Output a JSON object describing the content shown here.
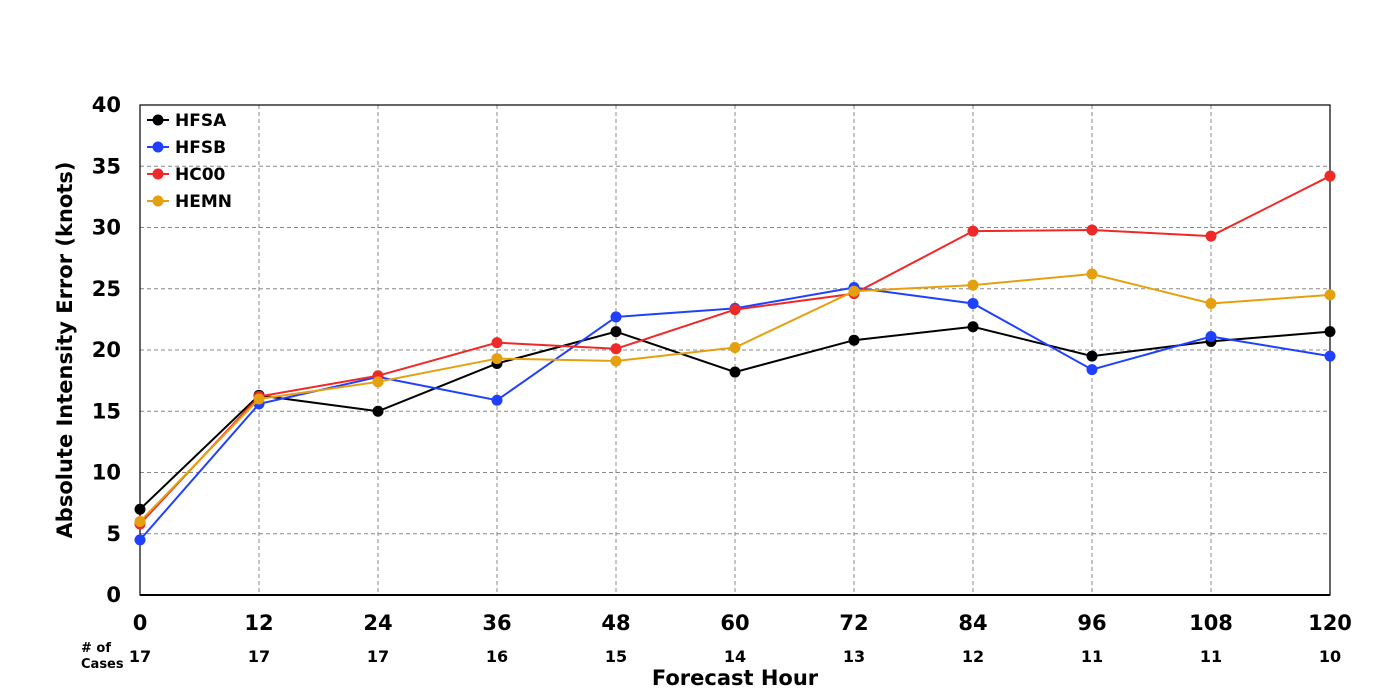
{
  "chart_data": {
    "type": "line",
    "xlabel": "Forecast Hour",
    "ylabel": "Absolute Intensity Error (knots)",
    "x": [
      0,
      12,
      24,
      36,
      48,
      60,
      72,
      84,
      96,
      108,
      120
    ],
    "xticks": [
      "0",
      "12",
      "24",
      "36",
      "48",
      "60",
      "72",
      "84",
      "96",
      "108",
      "120"
    ],
    "ylim": [
      0,
      40
    ],
    "yticks": [
      "0",
      "5",
      "10",
      "15",
      "20",
      "25",
      "30",
      "35",
      "40"
    ],
    "grid": true,
    "legend_position": "top-left",
    "cases_label_line1": "# of",
    "cases_label_line2": "Cases",
    "cases": [
      "17",
      "17",
      "17",
      "16",
      "15",
      "14",
      "13",
      "12",
      "11",
      "11",
      "10"
    ],
    "series": [
      {
        "name": "HFSA",
        "color": "#000000",
        "values": [
          7.0,
          16.3,
          15.0,
          18.9,
          21.5,
          18.2,
          20.8,
          21.9,
          19.5,
          20.7,
          21.5
        ]
      },
      {
        "name": "HFSB",
        "color": "#2040ff",
        "values": [
          4.5,
          15.6,
          17.8,
          15.9,
          22.7,
          23.4,
          25.1,
          23.8,
          18.4,
          21.1,
          19.5
        ]
      },
      {
        "name": "HC00",
        "color": "#f02828",
        "values": [
          5.8,
          16.2,
          17.9,
          20.6,
          20.1,
          23.3,
          24.6,
          29.7,
          29.8,
          29.3,
          34.2
        ]
      },
      {
        "name": "HEMN",
        "color": "#e5a010",
        "values": [
          6.0,
          16.0,
          17.4,
          19.3,
          19.1,
          20.2,
          24.8,
          25.3,
          26.2,
          23.8,
          24.5
        ]
      }
    ]
  }
}
